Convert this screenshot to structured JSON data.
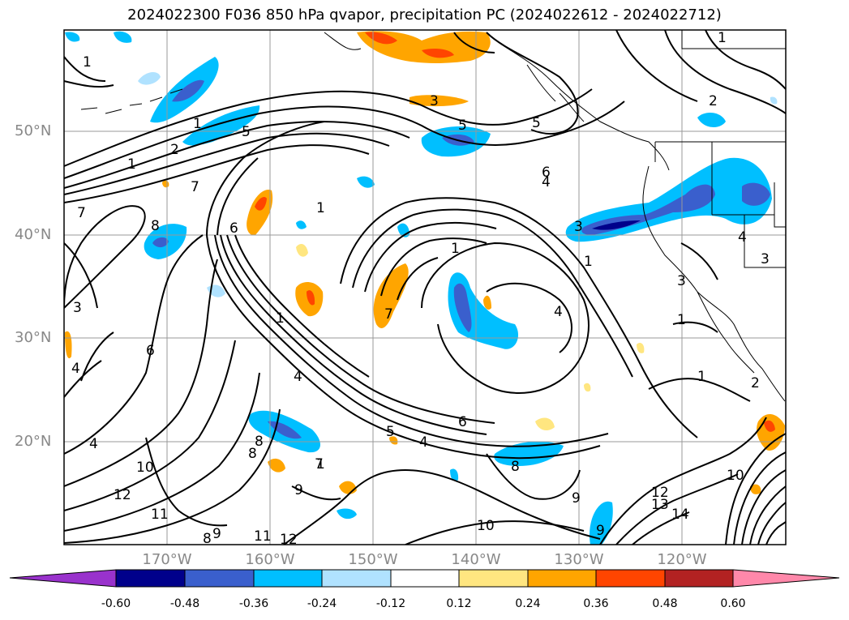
{
  "title": "2024022300 F036 850 hPa qvapor, precipitation PC (2024022612 - 2024022712)",
  "latitude_labels": [
    "50°N",
    "40°N",
    "30°N",
    "20°N"
  ],
  "longitude_labels": [
    "170°W",
    "160°W",
    "150°W",
    "140°W",
    "130°W",
    "120°W"
  ],
  "colorbar": {
    "tick_labels": [
      "-0.60",
      "-0.48",
      "-0.36",
      "-0.24",
      "-0.12",
      "0.12",
      "0.24",
      "0.36",
      "0.48",
      "0.60"
    ],
    "colors": [
      "#9932cc",
      "#00008b",
      "#3a5fcd",
      "#00bfff",
      "#b0e2ff",
      "#ffffff",
      "#ffe680",
      "#ffa500",
      "#ff4500",
      "#b22222",
      "#ff88aa"
    ]
  },
  "contour_labels": [
    "1",
    "1",
    "1",
    "1",
    "1",
    "1",
    "1",
    "1",
    "1",
    "1",
    "1",
    "2",
    "2",
    "2",
    "3",
    "3",
    "3",
    "3",
    "3",
    "4",
    "4",
    "4",
    "4",
    "4",
    "4",
    "4",
    "5",
    "5",
    "5",
    "5",
    "6",
    "6",
    "6",
    "6",
    "7",
    "7",
    "7",
    "7",
    "8",
    "8",
    "8",
    "8",
    "8",
    "9",
    "9",
    "9",
    "9",
    "10",
    "10",
    "10",
    "11",
    "11",
    "12",
    "12",
    "12",
    "13",
    "14"
  ]
}
